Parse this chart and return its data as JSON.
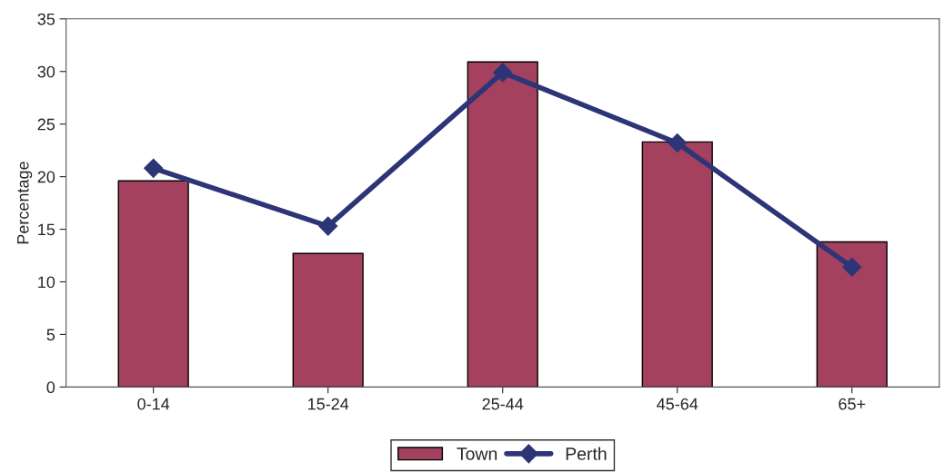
{
  "chart_data": {
    "type": "bar",
    "ylabel": "Percentage",
    "categories": [
      "0-14",
      "15-24",
      "25-44",
      "45-64",
      "65+"
    ],
    "series": [
      {
        "name": "Town",
        "color": "#a3415f",
        "values": [
          19.6,
          12.7,
          30.9,
          23.3,
          13.8
        ]
      },
      {
        "name": "Perth",
        "type": "line",
        "color": "#2e3577",
        "marker": "diamond",
        "values": [
          20.8,
          15.3,
          29.9,
          23.2,
          11.4
        ]
      }
    ],
    "ylim": [
      0,
      35
    ],
    "yticks": [
      0,
      5,
      10,
      15,
      20,
      25,
      30,
      35
    ],
    "grid": false,
    "legend": "bottom"
  }
}
